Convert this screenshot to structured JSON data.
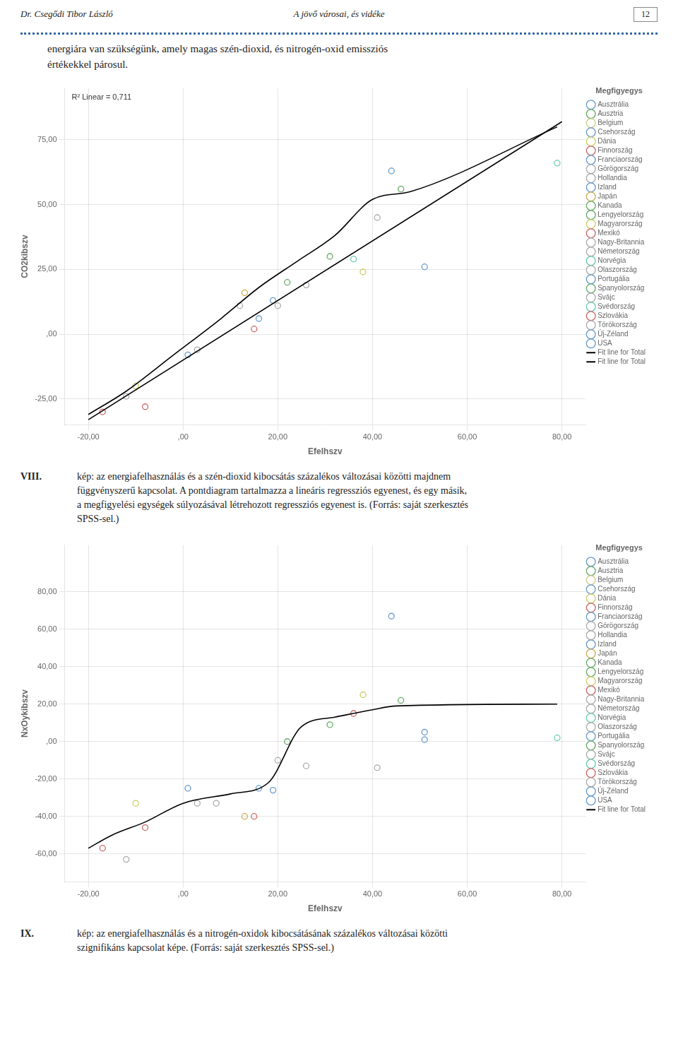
{
  "annotations": [
    "Dr. Csegődi Tibor László",
    "A jövő városai, és vidéke",
    "12",
    "energiára van szükségünk, amely magas szén-dioxid, és nitrogén-oxid emissziós",
    "értékekkel párosul."
  ],
  "chart_data": [
    {
      "type": "scatter",
      "xlabel": "Efelhszv",
      "ylabel": "CO2kibszv",
      "xlim": [
        -25,
        85
      ],
      "ylim": [
        -35,
        95
      ],
      "xticks": [
        {
          "value": -20,
          "label": "-20,00"
        },
        {
          "value": 0,
          "label": ",00"
        },
        {
          "value": 20,
          "label": "20,00"
        },
        {
          "value": 40,
          "label": "40,00"
        },
        {
          "value": 60,
          "label": "60,00"
        },
        {
          "value": 80,
          "label": "80,00"
        }
      ],
      "yticks": [
        {
          "value": -25,
          "label": "-25,00"
        },
        {
          "value": 0,
          "label": ",00"
        },
        {
          "value": 25,
          "label": "25,00"
        },
        {
          "value": 50,
          "label": "50,00"
        },
        {
          "value": 75,
          "label": "75,00"
        }
      ],
      "grid": true,
      "annotations": [
        "R² Linear = 0,711"
      ],
      "caption": [
        "VIII.",
        "kép: az energiafelhasználás és a szén-dioxid kibocsátás százalékos változásai közötti majdnem",
        "függvényszerű kapcsolat. A pontdiagram tartalmazza a lineáris regressziós egyenest, és egy másik,",
        "a megfigyelési egységek súlyozásával létrehozott regressziós egyenest is. (Forrás: saját szerkesztés",
        "SPSS-sel.)"
      ],
      "legend": "right",
      "legend_title": "Megfigyegys",
      "legend_entries": [
        {
          "name": "Ausztrália",
          "color": "#6699cc"
        },
        {
          "name": "Ausztria",
          "color": "#66aa66"
        },
        {
          "name": "Belgium",
          "color": "#cccc88"
        },
        {
          "name": "Csehország",
          "color": "#6699cc"
        },
        {
          "name": "Dánia",
          "color": "#cccc66"
        },
        {
          "name": "Finnország",
          "color": "#cc6666"
        },
        {
          "name": "Franciaország",
          "color": "#6699cc"
        },
        {
          "name": "Görögország",
          "color": "#aaaaaa"
        },
        {
          "name": "Hollandia",
          "color": "#aaaaaa"
        },
        {
          "name": "Izland",
          "color": "#6699cc"
        },
        {
          "name": "Japán",
          "color": "#ccaa55"
        },
        {
          "name": "Kanada",
          "color": "#66aa66"
        },
        {
          "name": "Lengyelország",
          "color": "#66aa66"
        },
        {
          "name": "Magyarország",
          "color": "#cccc66"
        },
        {
          "name": "Mexikó",
          "color": "#cc6666"
        },
        {
          "name": "Nagy-Britannia",
          "color": "#aaaaaa"
        },
        {
          "name": "Németország",
          "color": "#aaaaaa"
        },
        {
          "name": "Norvégia",
          "color": "#66ccaa"
        },
        {
          "name": "Olaszország",
          "color": "#aaaaaa"
        },
        {
          "name": "Portugália",
          "color": "#6699cc"
        },
        {
          "name": "Spanyolország",
          "color": "#66aa66"
        },
        {
          "name": "Svájc",
          "color": "#aaaaaa"
        },
        {
          "name": "Svédország",
          "color": "#66ccaa"
        },
        {
          "name": "Szlovákia",
          "color": "#cc6666"
        },
        {
          "name": "Törökország",
          "color": "#aaaaaa"
        },
        {
          "name": "Új-Zéland",
          "color": "#6699cc"
        },
        {
          "name": "USA",
          "color": "#6699cc"
        }
      ],
      "series": [
        {
          "type": "scatter",
          "marker": "circle",
          "x": [
            -17,
            -12,
            -10,
            -8,
            1,
            3,
            12,
            13,
            15,
            16,
            19,
            20,
            22,
            26,
            31,
            36,
            38,
            41,
            44,
            46,
            51,
            79
          ],
          "values": [
            -30,
            -24,
            -20,
            -28,
            -8,
            -6,
            11,
            16,
            2,
            6,
            13,
            11,
            20,
            19,
            30,
            29,
            24,
            45,
            63,
            56,
            26,
            66
          ],
          "colors": [
            "#cc6666",
            "#aaaaaa",
            "#cccc66",
            "#cc6666",
            "#6699cc",
            "#aaaaaa",
            "#aaaaaa",
            "#ccaa55",
            "#cc6666",
            "#6699cc",
            "#6699cc",
            "#aaaaaa",
            "#66aa66",
            "#aaaaaa",
            "#66aa66",
            "#66ccaa",
            "#cccc66",
            "#aaaaaa",
            "#6699cc",
            "#66aa66",
            "#6699cc",
            "#66ccaa"
          ]
        },
        {
          "name": "Fit line for Total",
          "type": "line",
          "line_style": "solid",
          "color": "#000000",
          "x": [
            -20,
            80
          ],
          "values": [
            -33,
            82
          ]
        },
        {
          "name": "Fit line for Total",
          "type": "line",
          "line_style": "solid",
          "color": "#000000",
          "x": [
            -20,
            -12,
            -2,
            8,
            16,
            24,
            32,
            40,
            48,
            79
          ],
          "values": [
            -31,
            -22,
            -8,
            6,
            18,
            28,
            38,
            52,
            55,
            80
          ]
        }
      ]
    },
    {
      "type": "scatter",
      "xlabel": "Efelhszv",
      "ylabel": "NxOykibszv",
      "xlim": [
        -25,
        85
      ],
      "ylim": [
        -75,
        105
      ],
      "xticks": [
        {
          "value": -20,
          "label": "-20,00"
        },
        {
          "value": 0,
          "label": ",00"
        },
        {
          "value": 20,
          "label": "20,00"
        },
        {
          "value": 40,
          "label": "40,00"
        },
        {
          "value": 60,
          "label": "60,00"
        },
        {
          "value": 80,
          "label": "80,00"
        }
      ],
      "yticks": [
        {
          "value": -60,
          "label": "-60,00"
        },
        {
          "value": -40,
          "label": "-40,00"
        },
        {
          "value": -20,
          "label": "-20,00"
        },
        {
          "value": 0,
          "label": ",00"
        },
        {
          "value": 20,
          "label": "20,00"
        },
        {
          "value": 40,
          "label": "40,00"
        },
        {
          "value": 60,
          "label": "60,00"
        },
        {
          "value": 80,
          "label": "80,00"
        }
      ],
      "grid": true,
      "caption": [
        "IX.",
        "kép: az energiafelhasználás és a nitrogén-oxidok kibocsátásának százalékos változásai közötti",
        "szignifikáns kapcsolat képe. (Forrás: saját szerkesztés SPSS-sel.)"
      ],
      "legend": "right",
      "legend_title": "Megfigyegys",
      "legend_entries": [
        {
          "name": "Ausztrália",
          "color": "#6699cc"
        },
        {
          "name": "Ausztria",
          "color": "#66aa66"
        },
        {
          "name": "Belgium",
          "color": "#cccc88"
        },
        {
          "name": "Csehország",
          "color": "#6699cc"
        },
        {
          "name": "Dánia",
          "color": "#cccc66"
        },
        {
          "name": "Finnország",
          "color": "#cc6666"
        },
        {
          "name": "Franciaország",
          "color": "#6699cc"
        },
        {
          "name": "Görögország",
          "color": "#aaaaaa"
        },
        {
          "name": "Hollandia",
          "color": "#aaaaaa"
        },
        {
          "name": "Izland",
          "color": "#6699cc"
        },
        {
          "name": "Japán",
          "color": "#ccaa55"
        },
        {
          "name": "Kanada",
          "color": "#66aa66"
        },
        {
          "name": "Lengyelország",
          "color": "#66aa66"
        },
        {
          "name": "Magyarország",
          "color": "#cccc66"
        },
        {
          "name": "Mexikó",
          "color": "#cc6666"
        },
        {
          "name": "Nagy-Britannia",
          "color": "#aaaaaa"
        },
        {
          "name": "Németország",
          "color": "#aaaaaa"
        },
        {
          "name": "Norvégia",
          "color": "#66ccaa"
        },
        {
          "name": "Olaszország",
          "color": "#aaaaaa"
        },
        {
          "name": "Portugália",
          "color": "#6699cc"
        },
        {
          "name": "Spanyolország",
          "color": "#66aa66"
        },
        {
          "name": "Svájc",
          "color": "#aaaaaa"
        },
        {
          "name": "Svédország",
          "color": "#66ccaa"
        },
        {
          "name": "Szlovákia",
          "color": "#cc6666"
        },
        {
          "name": "Törökország",
          "color": "#aaaaaa"
        },
        {
          "name": "Új-Zéland",
          "color": "#6699cc"
        },
        {
          "name": "USA",
          "color": "#6699cc"
        }
      ],
      "series": [
        {
          "type": "scatter",
          "marker": "circle",
          "x": [
            -17,
            -12,
            -10,
            -8,
            1,
            3,
            7,
            13,
            15,
            16,
            19,
            20,
            22,
            26,
            31,
            36,
            38,
            41,
            44,
            46,
            51,
            51,
            79
          ],
          "values": [
            -57,
            -63,
            -33,
            -46,
            -25,
            -33,
            -33,
            -40,
            -40,
            -25,
            -26,
            -10,
            0,
            -13,
            9,
            15,
            25,
            -14,
            67,
            22,
            5,
            1,
            2
          ],
          "colors": [
            "#cc6666",
            "#aaaaaa",
            "#cccc66",
            "#cc6666",
            "#6699cc",
            "#aaaaaa",
            "#aaaaaa",
            "#ccaa55",
            "#cc6666",
            "#6699cc",
            "#6699cc",
            "#aaaaaa",
            "#66aa66",
            "#aaaaaa",
            "#66aa66",
            "#cc6666",
            "#cccc66",
            "#aaaaaa",
            "#6699cc",
            "#66aa66",
            "#6699cc",
            "#6699cc",
            "#66ccaa"
          ]
        },
        {
          "name": "Fit line for Total",
          "type": "line",
          "line_style": "solid",
          "color": "#000000",
          "x": [
            -20,
            -15,
            -8,
            0,
            10,
            18,
            25,
            32,
            40,
            45,
            79
          ],
          "values": [
            -57,
            -50,
            -43,
            -33,
            -28,
            -22,
            8,
            13,
            17,
            19,
            20
          ]
        }
      ]
    }
  ]
}
